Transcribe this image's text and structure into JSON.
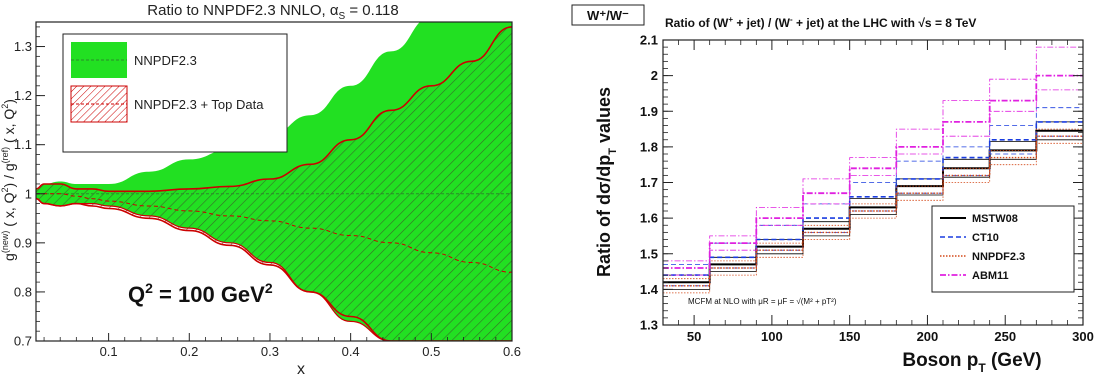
{
  "chart_data": [
    {
      "type": "line",
      "title": "Ratio to NNPDF2.3 NNLO, α",
      "title_sub": "S",
      "title_tail": " = 0.118",
      "xlabel": "x",
      "ylabel": "g(new) ( x, Q²) / g(ref) ( x, Q²)",
      "ylabel_parts": [
        "g",
        "(new)",
        " ( x, Q",
        "2",
        ") / g",
        "(ref)",
        " ( x, Q",
        "2",
        ")"
      ],
      "xlim": [
        0.01,
        0.6
      ],
      "ylim": [
        0.7,
        1.35
      ],
      "xticks": [
        "0.1",
        "0.2",
        "0.3",
        "0.4",
        "0.5",
        "0.6"
      ],
      "xtick_values": [
        0.1,
        0.2,
        0.3,
        0.4,
        0.5,
        0.6
      ],
      "yticks": [
        "0.7",
        "0.8",
        "0.9",
        "1",
        "1.1",
        "1.2",
        "1.3"
      ],
      "ytick_values": [
        0.7,
        0.8,
        0.9,
        1.0,
        1.1,
        1.2,
        1.3
      ],
      "annotation": "Q² = 100 GeV²",
      "annotation_parts": [
        "Q",
        "2",
        " = 100 GeV",
        "2"
      ],
      "legend_position": "top-left",
      "colors": {
        "nnpdf": "#22e022",
        "nnpdf_line": "#2a8a2a",
        "top": "#cc0000"
      },
      "series": [
        {
          "name": "NNPDF2.3",
          "x": [
            0.01,
            0.02,
            0.04,
            0.06,
            0.08,
            0.1,
            0.15,
            0.2,
            0.25,
            0.3,
            0.35,
            0.4,
            0.45,
            0.5,
            0.55,
            0.6
          ],
          "central": [
            1.0,
            1.0,
            1.0,
            1.0,
            1.0,
            1.0,
            1.0,
            1.0,
            1.0,
            1.0,
            1.0,
            1.0,
            1.0,
            1.0,
            1.0,
            1.0
          ],
          "upper": [
            1.01,
            1.02,
            1.025,
            1.02,
            1.02,
            1.02,
            1.045,
            1.07,
            1.09,
            1.12,
            1.16,
            1.22,
            1.29,
            1.36,
            1.36,
            1.36
          ],
          "lower": [
            0.99,
            0.98,
            0.975,
            0.98,
            0.98,
            0.975,
            0.955,
            0.93,
            0.9,
            0.86,
            0.8,
            0.74,
            0.7,
            0.7,
            0.7,
            0.7
          ]
        },
        {
          "name": "NNPDF2.3 + Top Data",
          "x": [
            0.01,
            0.02,
            0.04,
            0.06,
            0.08,
            0.1,
            0.15,
            0.2,
            0.25,
            0.3,
            0.35,
            0.4,
            0.45,
            0.5,
            0.55,
            0.6
          ],
          "central": [
            1.0,
            1.0,
            1.0,
            0.995,
            0.99,
            0.985,
            0.975,
            0.965,
            0.955,
            0.945,
            0.93,
            0.915,
            0.9,
            0.88,
            0.86,
            0.84
          ],
          "upper": [
            1.01,
            1.02,
            1.02,
            1.01,
            1.01,
            1.005,
            1.005,
            1.01,
            1.015,
            1.03,
            1.06,
            1.11,
            1.17,
            1.22,
            1.27,
            1.34
          ],
          "lower": [
            0.99,
            0.98,
            0.975,
            0.98,
            0.975,
            0.97,
            0.95,
            0.925,
            0.895,
            0.855,
            0.8,
            0.75,
            0.7,
            0.7,
            0.7,
            0.7
          ]
        }
      ]
    },
    {
      "type": "step",
      "label_box": "W⁺/W⁻",
      "title": "Ratio of (W⁺ + jet) / (W⁻ + jet) at the LHC with √s = 8 TeV",
      "title_parts": [
        "Ratio of (W",
        "+",
        " + jet) / (W",
        "-",
        " + jet) at the LHC with ",
        "√s",
        " = 8 TeV"
      ],
      "xlabel": "Boson pT (GeV)",
      "xlabel_parts": [
        "Boson p",
        "T",
        "  (GeV)"
      ],
      "ylabel": "Ratio of dσ/dpT values",
      "ylabel_parts": [
        "Ratio of dσ/dp",
        "T",
        " values"
      ],
      "xlim": [
        30,
        300
      ],
      "ylim": [
        1.3,
        2.1
      ],
      "xticks": [
        "50",
        "100",
        "150",
        "200",
        "250",
        "300"
      ],
      "xtick_values": [
        50,
        100,
        150,
        200,
        250,
        300
      ],
      "yticks": [
        "1.3",
        "1.4",
        "1.5",
        "1.6",
        "1.7",
        "1.8",
        "1.9",
        "2",
        "2.1"
      ],
      "ytick_values": [
        1.3,
        1.4,
        1.5,
        1.6,
        1.7,
        1.8,
        1.9,
        2.0,
        2.1
      ],
      "annotation": "MCFM at NLO with μR = μF = √(M² + pT²)",
      "legend_position": "bottom-right",
      "bin_edges": [
        30,
        60,
        90,
        120,
        150,
        180,
        210,
        240,
        270,
        300
      ],
      "series": [
        {
          "name": "MSTW08",
          "color": "#000000",
          "dash": "",
          "width": 2.0,
          "central": [
            1.42,
            1.47,
            1.52,
            1.57,
            1.63,
            1.69,
            1.74,
            1.79,
            1.845
          ],
          "upper": [
            1.44,
            1.49,
            1.54,
            1.59,
            1.655,
            1.71,
            1.765,
            1.815,
            1.87
          ],
          "lower": [
            1.4,
            1.45,
            1.5,
            1.55,
            1.61,
            1.665,
            1.715,
            1.765,
            1.82
          ]
        },
        {
          "name": "CT10",
          "color": "#1a3de0",
          "dash": "5,3",
          "width": 1.6,
          "central": [
            1.44,
            1.49,
            1.54,
            1.6,
            1.66,
            1.71,
            1.77,
            1.82,
            1.87
          ],
          "upper": [
            1.47,
            1.53,
            1.58,
            1.64,
            1.7,
            1.76,
            1.8,
            1.86,
            1.91
          ],
          "lower": [
            1.41,
            1.46,
            1.51,
            1.56,
            1.62,
            1.67,
            1.72,
            1.78,
            1.83
          ]
        },
        {
          "name": "NNPDF2.3",
          "color": "#d44a1a",
          "dash": "1.5,1.5",
          "width": 1.4,
          "central": [
            1.41,
            1.46,
            1.51,
            1.56,
            1.62,
            1.67,
            1.72,
            1.77,
            1.83
          ],
          "upper": [
            1.43,
            1.48,
            1.53,
            1.58,
            1.64,
            1.69,
            1.74,
            1.79,
            1.85
          ],
          "lower": [
            1.39,
            1.44,
            1.49,
            1.54,
            1.6,
            1.65,
            1.7,
            1.75,
            1.81
          ]
        },
        {
          "name": "ABM11",
          "color": "#e020e0",
          "dash": "6,2,1.5,2",
          "width": 1.8,
          "central": [
            1.46,
            1.53,
            1.6,
            1.67,
            1.74,
            1.8,
            1.87,
            1.93,
            2.0
          ],
          "upper": [
            1.48,
            1.55,
            1.63,
            1.71,
            1.77,
            1.85,
            1.93,
            1.99,
            2.08
          ],
          "lower": [
            1.44,
            1.51,
            1.58,
            1.64,
            1.72,
            1.78,
            1.83,
            1.9,
            1.96
          ]
        }
      ]
    }
  ]
}
